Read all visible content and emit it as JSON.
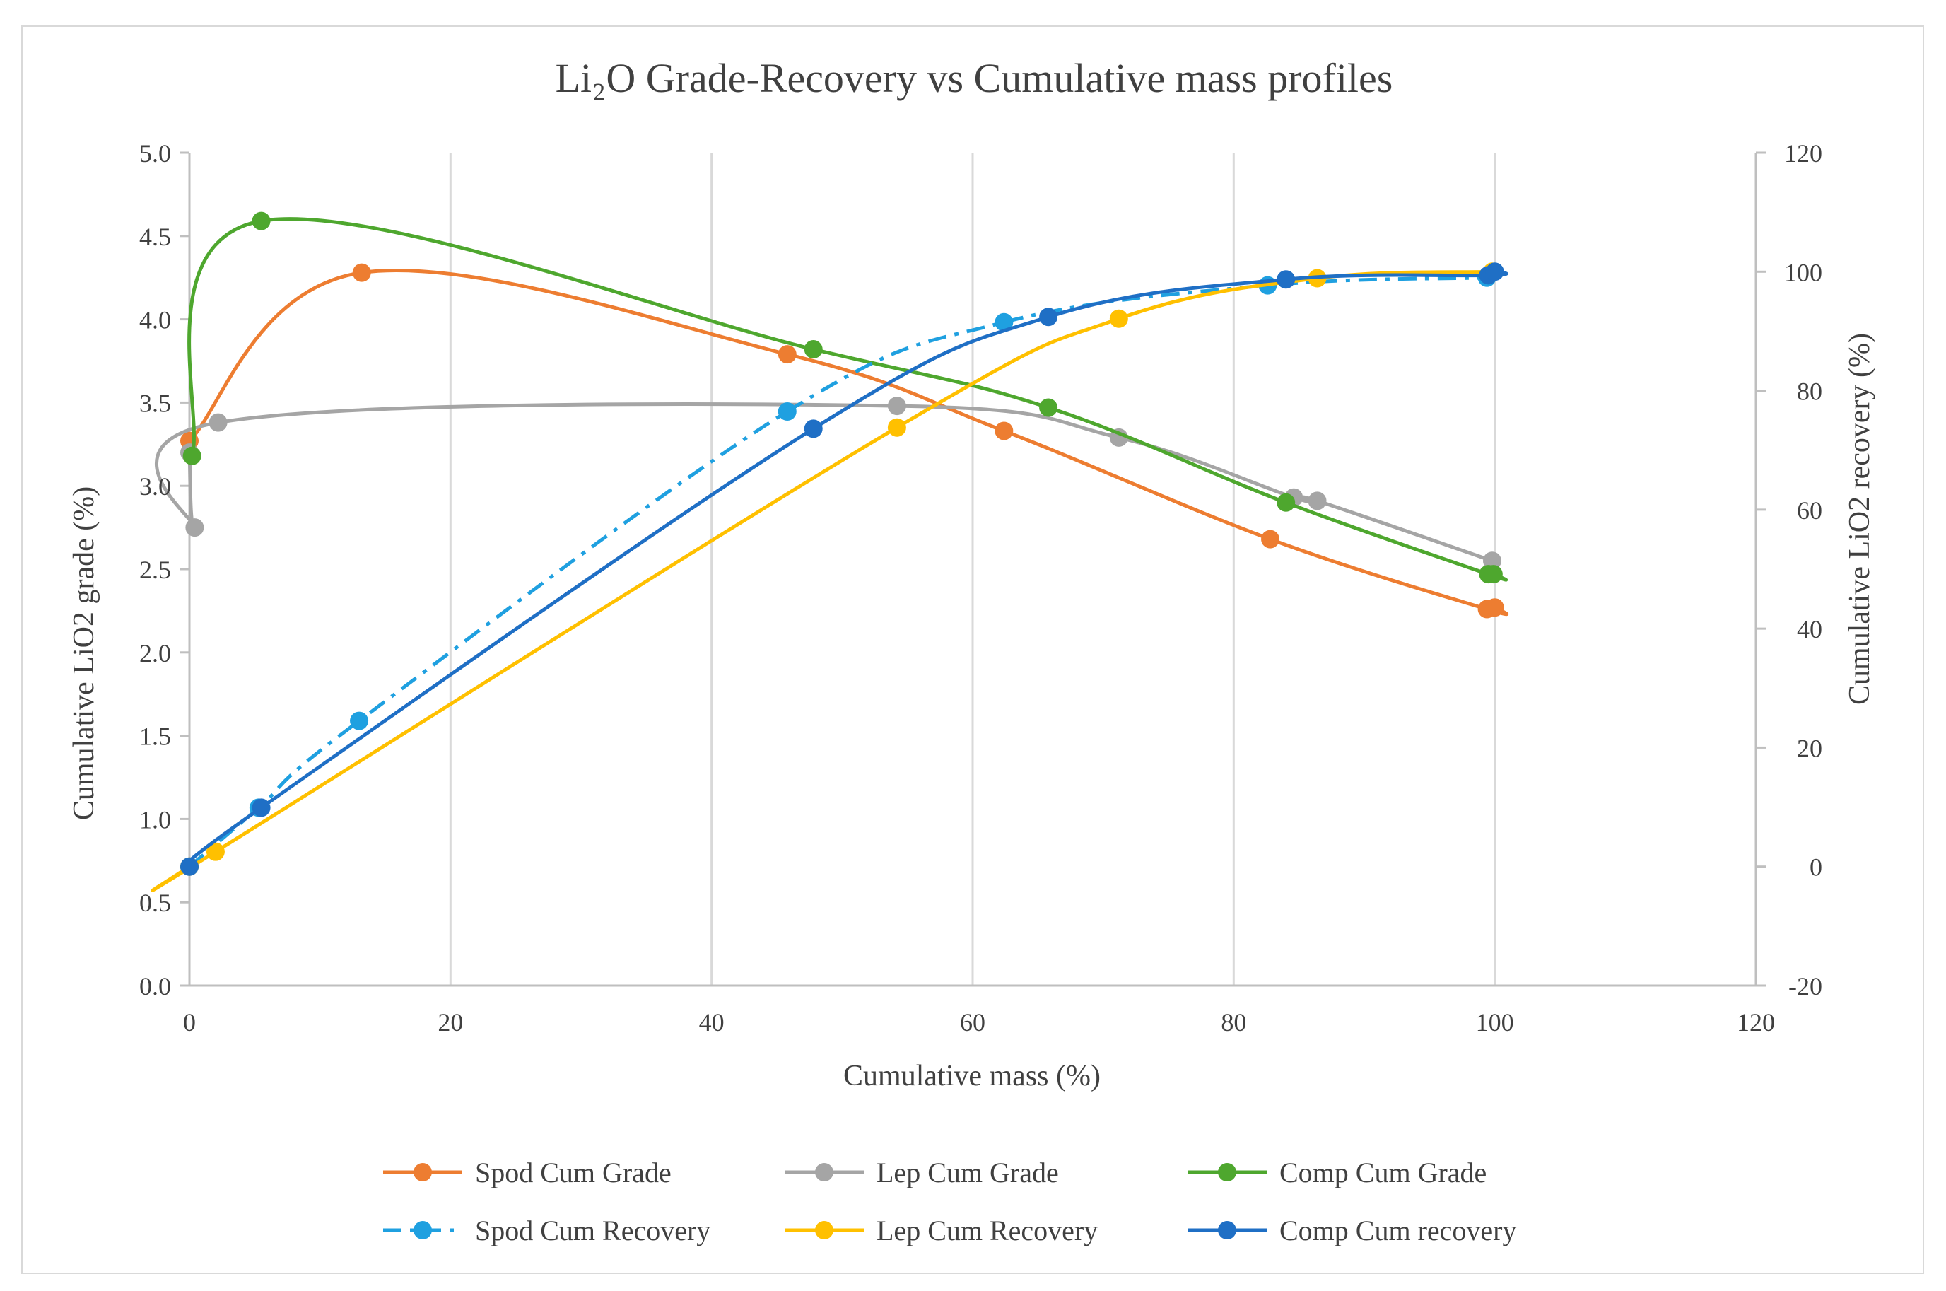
{
  "chart_data": {
    "type": "line",
    "title": "Li₂O Grade-Recovery vs Cumulative mass profiles",
    "xlabel": "Cumulative mass (%)",
    "ylabel": "Cumulative LiO2 grade (%)",
    "y2label": "Cumulative LiO2 recovery (%)",
    "xlim": [
      0,
      120
    ],
    "ylim": [
      0,
      5
    ],
    "y2lim": [
      -20,
      120
    ],
    "xticks": [
      0,
      20,
      40,
      60,
      80,
      100,
      120
    ],
    "yticks": [
      "0.0",
      "0.5",
      "1.0",
      "1.5",
      "2.0",
      "2.5",
      "3.0",
      "3.5",
      "4.0",
      "4.5",
      "5.0"
    ],
    "y2ticks": [
      "-20",
      "0",
      "20",
      "40",
      "60",
      "80",
      "100",
      "120"
    ],
    "grid": "vertical",
    "legend_position": "bottom",
    "series": [
      {
        "name": "Spod Cum Grade",
        "axis": "left",
        "color": "#ED7D31",
        "dash": "solid",
        "x": [
          0,
          13.2,
          45.8,
          62.4,
          82.8,
          99.4,
          100
        ],
        "y": [
          3.27,
          4.28,
          3.79,
          3.33,
          2.68,
          2.26,
          2.27
        ]
      },
      {
        "name": "Lep Cum Grade",
        "axis": "left",
        "color": "#A5A5A5",
        "dash": "solid",
        "x": [
          0,
          0.4,
          2.2,
          54.2,
          71.2,
          84.6,
          86.4,
          99.8
        ],
        "y": [
          3.2,
          2.75,
          3.38,
          3.48,
          3.29,
          2.93,
          2.91,
          2.55
        ]
      },
      {
        "name": "Comp Cum Grade",
        "axis": "left",
        "color": "#4EA72E",
        "dash": "solid",
        "x": [
          0.2,
          5.5,
          47.8,
          65.8,
          84,
          99.5,
          99.9
        ],
        "y": [
          3.18,
          4.59,
          3.82,
          3.47,
          2.9,
          2.47,
          2.47
        ]
      },
      {
        "name": "Spod Cum Recovery",
        "axis": "right",
        "color": "#1FA0E0",
        "dash": "dashdot",
        "x": [
          0,
          5.3,
          13,
          45.8,
          62.4,
          82.6,
          99.4
        ],
        "y": [
          0,
          9.9,
          24.5,
          76.5,
          91.5,
          97.7,
          99
        ]
      },
      {
        "name": "Lep Cum Recovery",
        "axis": "right",
        "color": "#FFC000",
        "dash": "solid",
        "x": [
          0,
          2,
          54.2,
          71.2,
          86.4,
          99.8
        ],
        "y": [
          0,
          2.5,
          73.8,
          92.1,
          98.9,
          100
        ]
      },
      {
        "name": "Comp Cum recovery",
        "axis": "right",
        "color": "#1F6FC5",
        "dash": "solid",
        "x": [
          0,
          5.5,
          47.8,
          65.8,
          84,
          99.5,
          100
        ],
        "y": [
          0,
          9.9,
          73.6,
          92.4,
          98.7,
          99.4,
          100
        ]
      }
    ]
  }
}
